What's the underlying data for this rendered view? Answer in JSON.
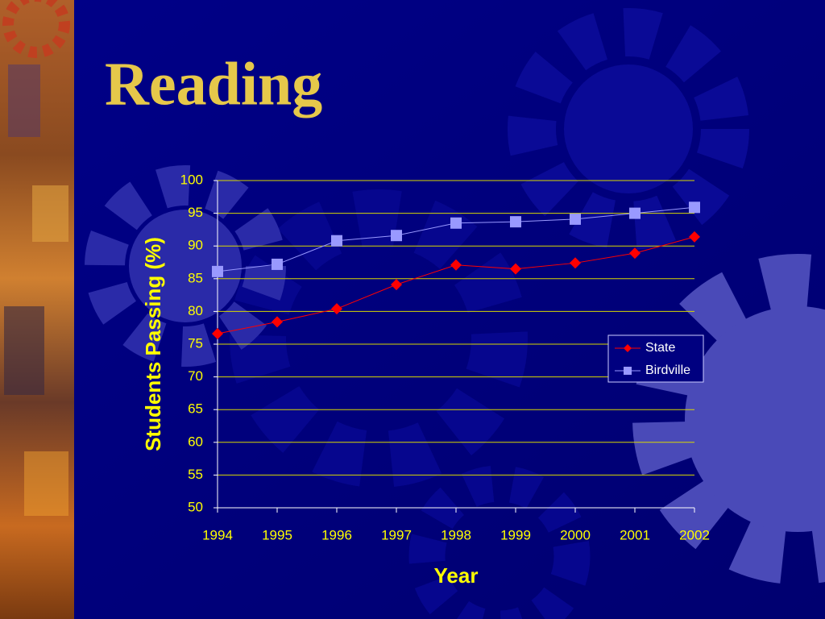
{
  "chart_data": {
    "type": "line",
    "title": "Reading",
    "y_label": "Students Passing (%)",
    "x_label": "Year",
    "categories": [
      "1994",
      "1995",
      "1996",
      "1997",
      "1998",
      "1999",
      "2000",
      "2001",
      "2002"
    ],
    "series": [
      {
        "name": "State",
        "color": "#ff0000",
        "marker": "diamond",
        "values": [
          76.6,
          78.4,
          80.4,
          84.1,
          87.1,
          86.5,
          87.4,
          88.9,
          91.4
        ]
      },
      {
        "name": "Birdville",
        "color": "#9999ff",
        "marker": "square",
        "values": [
          86.1,
          87.2,
          90.8,
          91.6,
          93.5,
          93.7,
          94.1,
          95.0,
          95.9
        ]
      }
    ],
    "ylim": [
      50,
      100
    ],
    "yticks": [
      50,
      55,
      60,
      65,
      70,
      75,
      80,
      85,
      90,
      95,
      100
    ],
    "grid": true,
    "legend": "right"
  }
}
